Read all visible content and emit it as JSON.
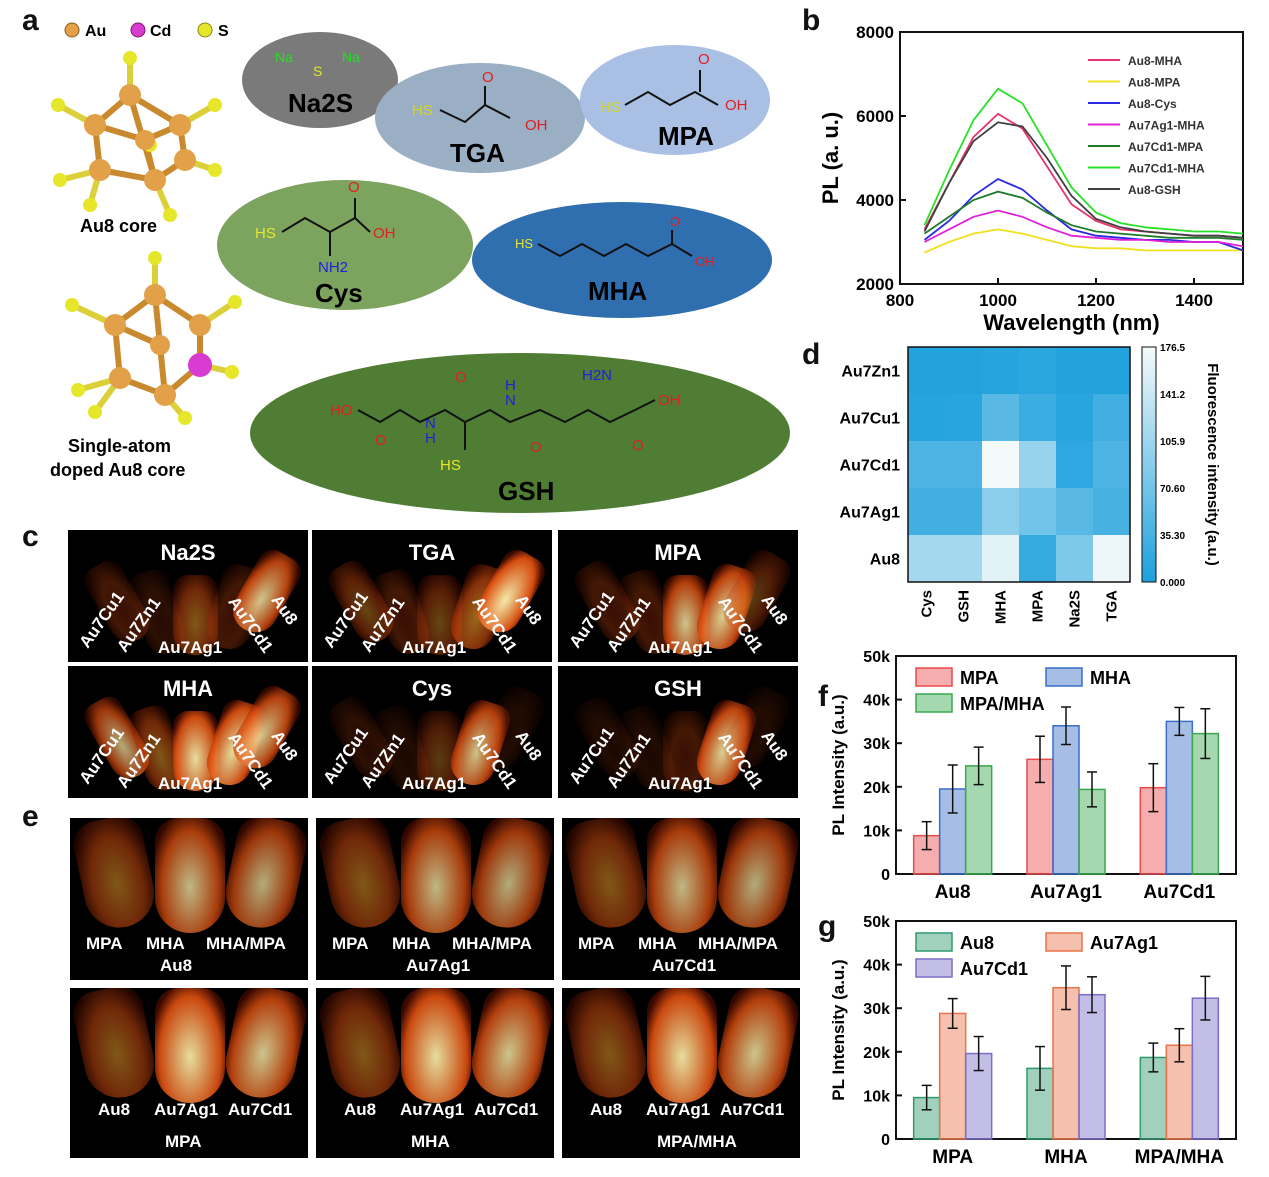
{
  "panels": {
    "a": "a",
    "b": "b",
    "c": "c",
    "d": "d",
    "e": "e",
    "f": "f",
    "g": "g"
  },
  "legend_a": [
    {
      "label": "Au",
      "color": "#e2a048"
    },
    {
      "label": "Cd",
      "color": "#d83bd0"
    },
    {
      "label": "S",
      "color": "#e6e62a"
    }
  ],
  "cores": {
    "core1": "Au8 core",
    "core2_line1": "Single-atom",
    "core2_line2": "doped Au8 core"
  },
  "ligands": {
    "na2s": "Na2S",
    "tga": "TGA",
    "mpa": "MPA",
    "cys": "Cys",
    "mha": "MHA",
    "gsh": "GSH",
    "na": "Na",
    "s": "S",
    "hs": "HS",
    "oh": "OH",
    "o": "O",
    "nh2": "NH2",
    "h2n": "H2N",
    "ho": "HO",
    "n": "N",
    "h": "H"
  },
  "photos_c": [
    {
      "title": "Na2S"
    },
    {
      "title": "TGA"
    },
    {
      "title": "MPA"
    },
    {
      "title": "MHA"
    },
    {
      "title": "Cys"
    },
    {
      "title": "GSH"
    }
  ],
  "tube_labels_c": [
    "Au7Cu1",
    "Au7Zn1",
    "Au7Ag1",
    "Au7Cd1",
    "Au8"
  ],
  "photos_e_top": [
    {
      "labels": [
        "MPA",
        "MHA",
        "MHA/MPA"
      ],
      "cluster": "Au8"
    },
    {
      "labels": [
        "MPA",
        "MHA",
        "MHA/MPA"
      ],
      "cluster": "Au7Ag1"
    },
    {
      "labels": [
        "MPA",
        "MHA",
        "MHA/MPA"
      ],
      "cluster": "Au7Cd1"
    }
  ],
  "photos_e_bottom": [
    {
      "labels": [
        "Au8",
        "Au7Ag1",
        "Au7Cd1"
      ],
      "ligand": "MPA"
    },
    {
      "labels": [
        "Au8",
        "Au7Ag1",
        "Au7Cd1"
      ],
      "ligand": "MHA"
    },
    {
      "labels": [
        "Au8",
        "Au7Ag1",
        "Au7Cd1"
      ],
      "ligand": "MPA/MHA"
    }
  ],
  "chart_data": [
    {
      "id": "b",
      "type": "line",
      "xlabel": "Wavelength (nm)",
      "ylabel": "PL (a. u.)",
      "xlim": [
        800,
        1500
      ],
      "ylim": [
        2000,
        8000
      ],
      "xticks": [
        800,
        1000,
        1200,
        1400
      ],
      "yticks": [
        2000,
        4000,
        6000,
        8000
      ],
      "x": [
        850,
        900,
        950,
        1000,
        1050,
        1100,
        1150,
        1200,
        1250,
        1300,
        1350,
        1400,
        1450,
        1500
      ],
      "series": [
        {
          "name": "Au8-MHA",
          "color": "#e8336d",
          "values": [
            3300,
            4400,
            5500,
            6050,
            5700,
            4800,
            3900,
            3500,
            3300,
            3250,
            3200,
            3150,
            3150,
            3100
          ]
        },
        {
          "name": "Au8-MPA",
          "color": "#f0e020",
          "values": [
            2750,
            3000,
            3200,
            3300,
            3200,
            3050,
            2900,
            2850,
            2850,
            2800,
            2800,
            2800,
            2800,
            2800
          ]
        },
        {
          "name": "Au8-Cys",
          "color": "#2a2ae0",
          "values": [
            3050,
            3500,
            4100,
            4500,
            4250,
            3750,
            3300,
            3150,
            3100,
            3050,
            3050,
            3000,
            3000,
            2800
          ]
        },
        {
          "name": "Au7Ag1-MHA",
          "color": "#e020d8",
          "values": [
            3000,
            3300,
            3600,
            3750,
            3600,
            3350,
            3150,
            3100,
            3050,
            3050,
            3000,
            3000,
            3000,
            2900
          ]
        },
        {
          "name": "Au7Cd1-MPA",
          "color": "#1f7a2a",
          "values": [
            3200,
            3600,
            4000,
            4200,
            4050,
            3700,
            3400,
            3250,
            3200,
            3150,
            3100,
            3100,
            3100,
            3050
          ]
        },
        {
          "name": "Au7Cd1-MHA",
          "color": "#28e028",
          "values": [
            3400,
            4700,
            5900,
            6650,
            6300,
            5300,
            4300,
            3700,
            3450,
            3350,
            3300,
            3250,
            3250,
            3200
          ]
        },
        {
          "name": "Au8-GSH",
          "color": "#404040",
          "values": [
            3250,
            4400,
            5400,
            5850,
            5750,
            5000,
            4100,
            3550,
            3350,
            3250,
            3200,
            3150,
            3150,
            3100
          ]
        }
      ]
    },
    {
      "id": "d",
      "type": "heatmap",
      "xcategories": [
        "Cys",
        "GSH",
        "MHA",
        "MPA",
        "Na2S",
        "TGA"
      ],
      "ycategories": [
        "Au7Zn1",
        "Au7Cu1",
        "Au7Cd1",
        "Au7Ag1",
        "Au8"
      ],
      "values": [
        [
          5,
          5,
          8,
          12,
          6,
          6
        ],
        [
          8,
          10,
          50,
          25,
          10,
          30
        ],
        [
          40,
          40,
          176,
          100,
          15,
          40
        ],
        [
          30,
          30,
          90,
          70,
          50,
          35
        ],
        [
          110,
          110,
          160,
          20,
          80,
          170
        ]
      ],
      "zlim": [
        0,
        176.5
      ],
      "colorbar_ticks": [
        "0.000",
        "35.30",
        "70.60",
        "105.9",
        "141.2",
        "176.5"
      ],
      "colorbar_label": "Fluorescence intensity (a.u.)"
    },
    {
      "id": "f",
      "type": "bar",
      "ylabel": "PL Intensity (a.u.)",
      "categories": [
        "Au8",
        "Au7Ag1",
        "Au7Cd1"
      ],
      "ylim": [
        0,
        50000
      ],
      "yticks": [
        "0",
        "10k",
        "20k",
        "30k",
        "40k",
        "50k"
      ],
      "series": [
        {
          "name": "MPA",
          "color": "#e84a4a",
          "values": [
            8800,
            26300,
            19800
          ],
          "errors": [
            3200,
            5300,
            5500
          ]
        },
        {
          "name": "MHA",
          "color": "#3a6ec8",
          "values": [
            19500,
            34000,
            35000
          ],
          "errors": [
            5500,
            4300,
            3200
          ]
        },
        {
          "name": "MPA/MHA",
          "color": "#3aa84e",
          "values": [
            24800,
            19400,
            32200
          ],
          "errors": [
            4300,
            4000,
            5700
          ]
        }
      ]
    },
    {
      "id": "g",
      "type": "bar",
      "ylabel": "PL Intensity (a.u.)",
      "categories": [
        "MPA",
        "MHA",
        "MPA/MHA"
      ],
      "ylim": [
        0,
        50000
      ],
      "yticks": [
        "0",
        "10k",
        "20k",
        "30k",
        "40k",
        "50k"
      ],
      "series": [
        {
          "name": "Au8",
          "color": "#2e9a6e",
          "values": [
            9500,
            16200,
            18700
          ],
          "errors": [
            2800,
            5000,
            3300
          ]
        },
        {
          "name": "Au7Ag1",
          "color": "#e8744a",
          "values": [
            28800,
            34700,
            21500
          ],
          "errors": [
            3400,
            5000,
            3800
          ]
        },
        {
          "name": "Au7Cd1",
          "color": "#7a6ec8",
          "values": [
            19600,
            33100,
            32300
          ],
          "errors": [
            3900,
            4100,
            5000
          ]
        }
      ]
    }
  ]
}
